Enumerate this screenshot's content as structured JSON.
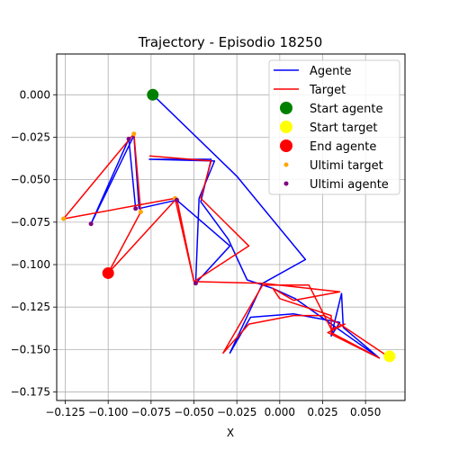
{
  "chart_data": {
    "type": "line",
    "title": "Trajectory - Episodio 18250",
    "xlabel": "X",
    "ylabel": "",
    "xlim": [
      -0.13,
      0.073
    ],
    "ylim": [
      -0.18,
      0.024
    ],
    "xticks": [
      -0.125,
      -0.1,
      -0.075,
      -0.05,
      -0.025,
      0.0,
      0.025,
      0.05
    ],
    "xtick_labels": [
      "−0.125",
      "−0.100",
      "−0.075",
      "−0.050",
      "−0.025",
      "0.000",
      "0.025",
      "0.050"
    ],
    "yticks": [
      0.0,
      -0.025,
      -0.05,
      -0.075,
      -0.1,
      -0.125,
      -0.15,
      -0.175
    ],
    "ytick_labels": [
      "0.000",
      "−0.025",
      "−0.050",
      "−0.075",
      "−0.100",
      "−0.125",
      "−0.150",
      "−0.175"
    ],
    "grid": true,
    "legend_position": "top-right",
    "series": [
      {
        "name": "Agente",
        "color": "#0000ff",
        "points": [
          [
            -0.074,
            0.0
          ],
          [
            -0.025,
            -0.048
          ],
          [
            0.015,
            -0.097
          ],
          [
            -0.01,
            -0.111
          ],
          [
            -0.029,
            -0.152
          ],
          [
            -0.017,
            -0.131
          ],
          [
            0.008,
            -0.129
          ],
          [
            0.035,
            -0.134
          ],
          [
            0.03,
            -0.142
          ],
          [
            0.036,
            -0.117
          ],
          [
            0.037,
            -0.137
          ],
          [
            0.058,
            -0.155
          ],
          [
            0.009,
            -0.12
          ],
          [
            -0.004,
            -0.114
          ],
          [
            -0.019,
            -0.109
          ],
          [
            -0.03,
            -0.085
          ],
          [
            -0.046,
            -0.063
          ],
          [
            -0.04,
            -0.038
          ],
          [
            -0.076,
            -0.038
          ],
          [
            -0.038,
            -0.039
          ],
          [
            -0.047,
            -0.061
          ],
          [
            -0.049,
            -0.111
          ],
          [
            -0.029,
            -0.089
          ],
          [
            -0.06,
            -0.062
          ],
          [
            -0.082,
            -0.067
          ],
          [
            -0.085,
            -0.024
          ],
          [
            -0.11,
            -0.076
          ],
          [
            -0.088,
            -0.026
          ],
          [
            -0.084,
            -0.067
          ]
        ]
      },
      {
        "name": "Target",
        "color": "#ff0000",
        "points": [
          [
            -0.076,
            -0.036
          ],
          [
            -0.04,
            -0.039
          ],
          [
            -0.046,
            -0.061
          ],
          [
            -0.018,
            -0.089
          ],
          [
            -0.05,
            -0.11
          ],
          [
            -0.061,
            -0.061
          ],
          [
            -0.126,
            -0.073
          ],
          [
            -0.085,
            -0.023
          ],
          [
            -0.081,
            -0.069
          ],
          [
            -0.1,
            -0.105
          ],
          [
            -0.06,
            -0.061
          ],
          [
            -0.05,
            -0.11
          ],
          [
            -0.01,
            -0.111
          ],
          [
            0.035,
            -0.116
          ],
          [
            0.008,
            -0.121
          ],
          [
            -0.004,
            -0.114
          ],
          [
            0.0,
            -0.12
          ],
          [
            0.03,
            -0.13
          ],
          [
            0.03,
            -0.14
          ],
          [
            0.058,
            -0.155
          ],
          [
            0.028,
            -0.14
          ],
          [
            0.038,
            -0.135
          ],
          [
            0.03,
            -0.138
          ],
          [
            0.017,
            -0.112
          ],
          [
            -0.01,
            -0.112
          ],
          [
            -0.033,
            -0.152
          ],
          [
            -0.018,
            -0.135
          ],
          [
            0.008,
            -0.13
          ],
          [
            0.026,
            -0.13
          ],
          [
            0.035,
            -0.135
          ],
          [
            0.063,
            -0.154
          ]
        ]
      }
    ],
    "markers": [
      {
        "name": "Start agente",
        "color": "#008000",
        "point": [
          -0.074,
          0.0
        ],
        "size": "large"
      },
      {
        "name": "Start target",
        "color": "#ffff00",
        "point": [
          0.064,
          -0.154
        ],
        "size": "large"
      },
      {
        "name": "End agente",
        "color": "#ff0000",
        "point": [
          -0.1,
          -0.105
        ],
        "size": "large"
      }
    ],
    "scatter_series": [
      {
        "name": "Ultimi target",
        "color": "#ffa500",
        "points": [
          [
            -0.126,
            -0.073
          ],
          [
            -0.085,
            -0.023
          ],
          [
            -0.081,
            -0.069
          ],
          [
            -0.1,
            -0.105
          ],
          [
            -0.061,
            -0.061
          ]
        ]
      },
      {
        "name": "Ultimi agente",
        "color": "#800080",
        "points": [
          [
            -0.11,
            -0.076
          ],
          [
            -0.088,
            -0.026
          ],
          [
            -0.084,
            -0.067
          ],
          [
            -0.06,
            -0.062
          ],
          [
            -0.049,
            -0.111
          ]
        ]
      }
    ]
  }
}
